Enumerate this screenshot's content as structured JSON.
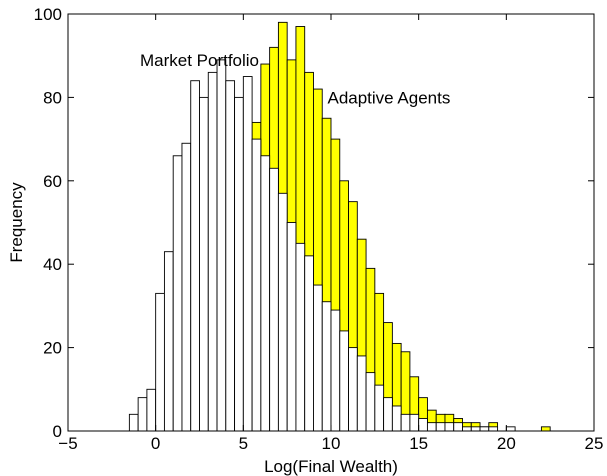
{
  "chart_data": {
    "type": "bar",
    "title": "",
    "xlabel": "Log(Final Wealth)",
    "ylabel": "Frequency",
    "xlim": [
      -5,
      25
    ],
    "ylim": [
      0,
      100
    ],
    "xticks": [
      -5,
      0,
      5,
      10,
      15,
      20,
      25
    ],
    "yticks": [
      0,
      20,
      40,
      60,
      80,
      100
    ],
    "grid": false,
    "bin_width": 0.5,
    "annotations": [
      {
        "text": "Market Portfolio",
        "x": 2.5,
        "y": 89
      },
      {
        "text": "Adaptive Agents",
        "x": 9.8,
        "y": 80
      }
    ],
    "series": [
      {
        "name": "Adaptive Agents",
        "color": "#ffff00",
        "bins": [
          {
            "x": 5.75,
            "y": 74
          },
          {
            "x": 6.25,
            "y": 88
          },
          {
            "x": 6.75,
            "y": 92
          },
          {
            "x": 7.25,
            "y": 98
          },
          {
            "x": 7.75,
            "y": 89
          },
          {
            "x": 8.25,
            "y": 97
          },
          {
            "x": 8.75,
            "y": 86
          },
          {
            "x": 9.25,
            "y": 82
          },
          {
            "x": 9.75,
            "y": 75
          },
          {
            "x": 10.25,
            "y": 70
          },
          {
            "x": 10.75,
            "y": 60
          },
          {
            "x": 11.25,
            "y": 55
          },
          {
            "x": 11.75,
            "y": 46
          },
          {
            "x": 12.25,
            "y": 39
          },
          {
            "x": 12.75,
            "y": 33
          },
          {
            "x": 13.25,
            "y": 26
          },
          {
            "x": 13.75,
            "y": 21
          },
          {
            "x": 14.25,
            "y": 19
          },
          {
            "x": 14.75,
            "y": 13
          },
          {
            "x": 15.25,
            "y": 8
          },
          {
            "x": 15.75,
            "y": 5
          },
          {
            "x": 16.25,
            "y": 4
          },
          {
            "x": 16.75,
            "y": 4
          },
          {
            "x": 17.25,
            "y": 3
          },
          {
            "x": 17.75,
            "y": 2
          },
          {
            "x": 18.25,
            "y": 2
          },
          {
            "x": 18.75,
            "y": 1
          },
          {
            "x": 19.25,
            "y": 2
          },
          {
            "x": 22.25,
            "y": 1
          }
        ]
      },
      {
        "name": "Market Portfolio",
        "color": "#ffffff",
        "bins": [
          {
            "x": -1.25,
            "y": 4
          },
          {
            "x": -0.75,
            "y": 8
          },
          {
            "x": -0.25,
            "y": 10
          },
          {
            "x": 0.25,
            "y": 33
          },
          {
            "x": 0.75,
            "y": 43
          },
          {
            "x": 1.25,
            "y": 66
          },
          {
            "x": 1.75,
            "y": 69
          },
          {
            "x": 2.25,
            "y": 84
          },
          {
            "x": 2.75,
            "y": 80
          },
          {
            "x": 3.25,
            "y": 86
          },
          {
            "x": 3.75,
            "y": 89
          },
          {
            "x": 4.25,
            "y": 84
          },
          {
            "x": 4.75,
            "y": 80
          },
          {
            "x": 5.25,
            "y": 85
          },
          {
            "x": 5.75,
            "y": 70
          },
          {
            "x": 6.25,
            "y": 66
          },
          {
            "x": 6.75,
            "y": 63
          },
          {
            "x": 7.25,
            "y": 57
          },
          {
            "x": 7.75,
            "y": 50
          },
          {
            "x": 8.25,
            "y": 45
          },
          {
            "x": 8.75,
            "y": 42
          },
          {
            "x": 9.25,
            "y": 35
          },
          {
            "x": 9.75,
            "y": 31
          },
          {
            "x": 10.25,
            "y": 29
          },
          {
            "x": 10.75,
            "y": 24
          },
          {
            "x": 11.25,
            "y": 20
          },
          {
            "x": 11.75,
            "y": 18
          },
          {
            "x": 12.25,
            "y": 14
          },
          {
            "x": 12.75,
            "y": 11
          },
          {
            "x": 13.25,
            "y": 8
          },
          {
            "x": 13.75,
            "y": 6
          },
          {
            "x": 14.25,
            "y": 4
          },
          {
            "x": 14.75,
            "y": 4
          },
          {
            "x": 15.25,
            "y": 3
          },
          {
            "x": 15.75,
            "y": 2
          },
          {
            "x": 16.25,
            "y": 2
          },
          {
            "x": 16.75,
            "y": 2
          },
          {
            "x": 17.25,
            "y": 2
          },
          {
            "x": 17.75,
            "y": 1
          },
          {
            "x": 18.25,
            "y": 1
          },
          {
            "x": 18.75,
            "y": 1
          },
          {
            "x": 19.25,
            "y": 1
          },
          {
            "x": 20.25,
            "y": 1
          }
        ]
      }
    ]
  }
}
